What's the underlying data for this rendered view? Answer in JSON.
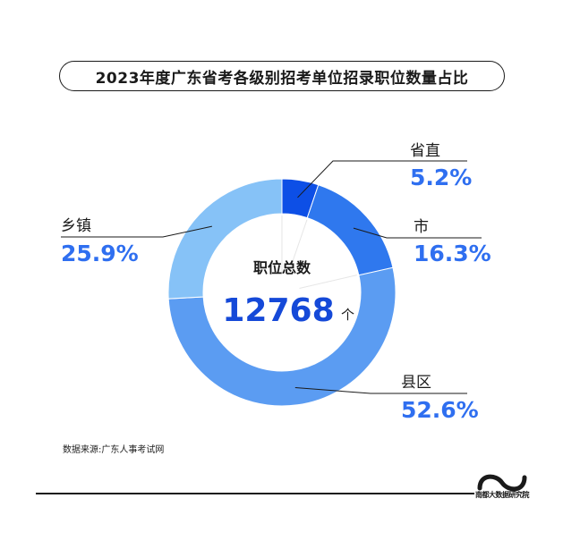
{
  "title": "2023年度广东省考各级别招考单位招录职位数量占比",
  "center": {
    "label": "职位总数",
    "total": "12768",
    "unit": "个"
  },
  "source": "数据来源:广东人事考试网",
  "logo_text": "南都大数据研究院",
  "chart_data": {
    "type": "pie",
    "title": "2023年度广东省考各级别招考单位招录职位数量占比",
    "unit": "%",
    "slices": [
      {
        "name": "省直",
        "value": 5.2,
        "label": "5.2%",
        "color": "#0d4fe6"
      },
      {
        "name": "市",
        "value": 16.3,
        "label": "16.3%",
        "color": "#2f78ee"
      },
      {
        "name": "县区",
        "value": 52.6,
        "label": "52.6%",
        "color": "#5b9cf2"
      },
      {
        "name": "乡镇",
        "value": 25.9,
        "label": "25.9%",
        "color": "#86c2f7"
      }
    ]
  }
}
